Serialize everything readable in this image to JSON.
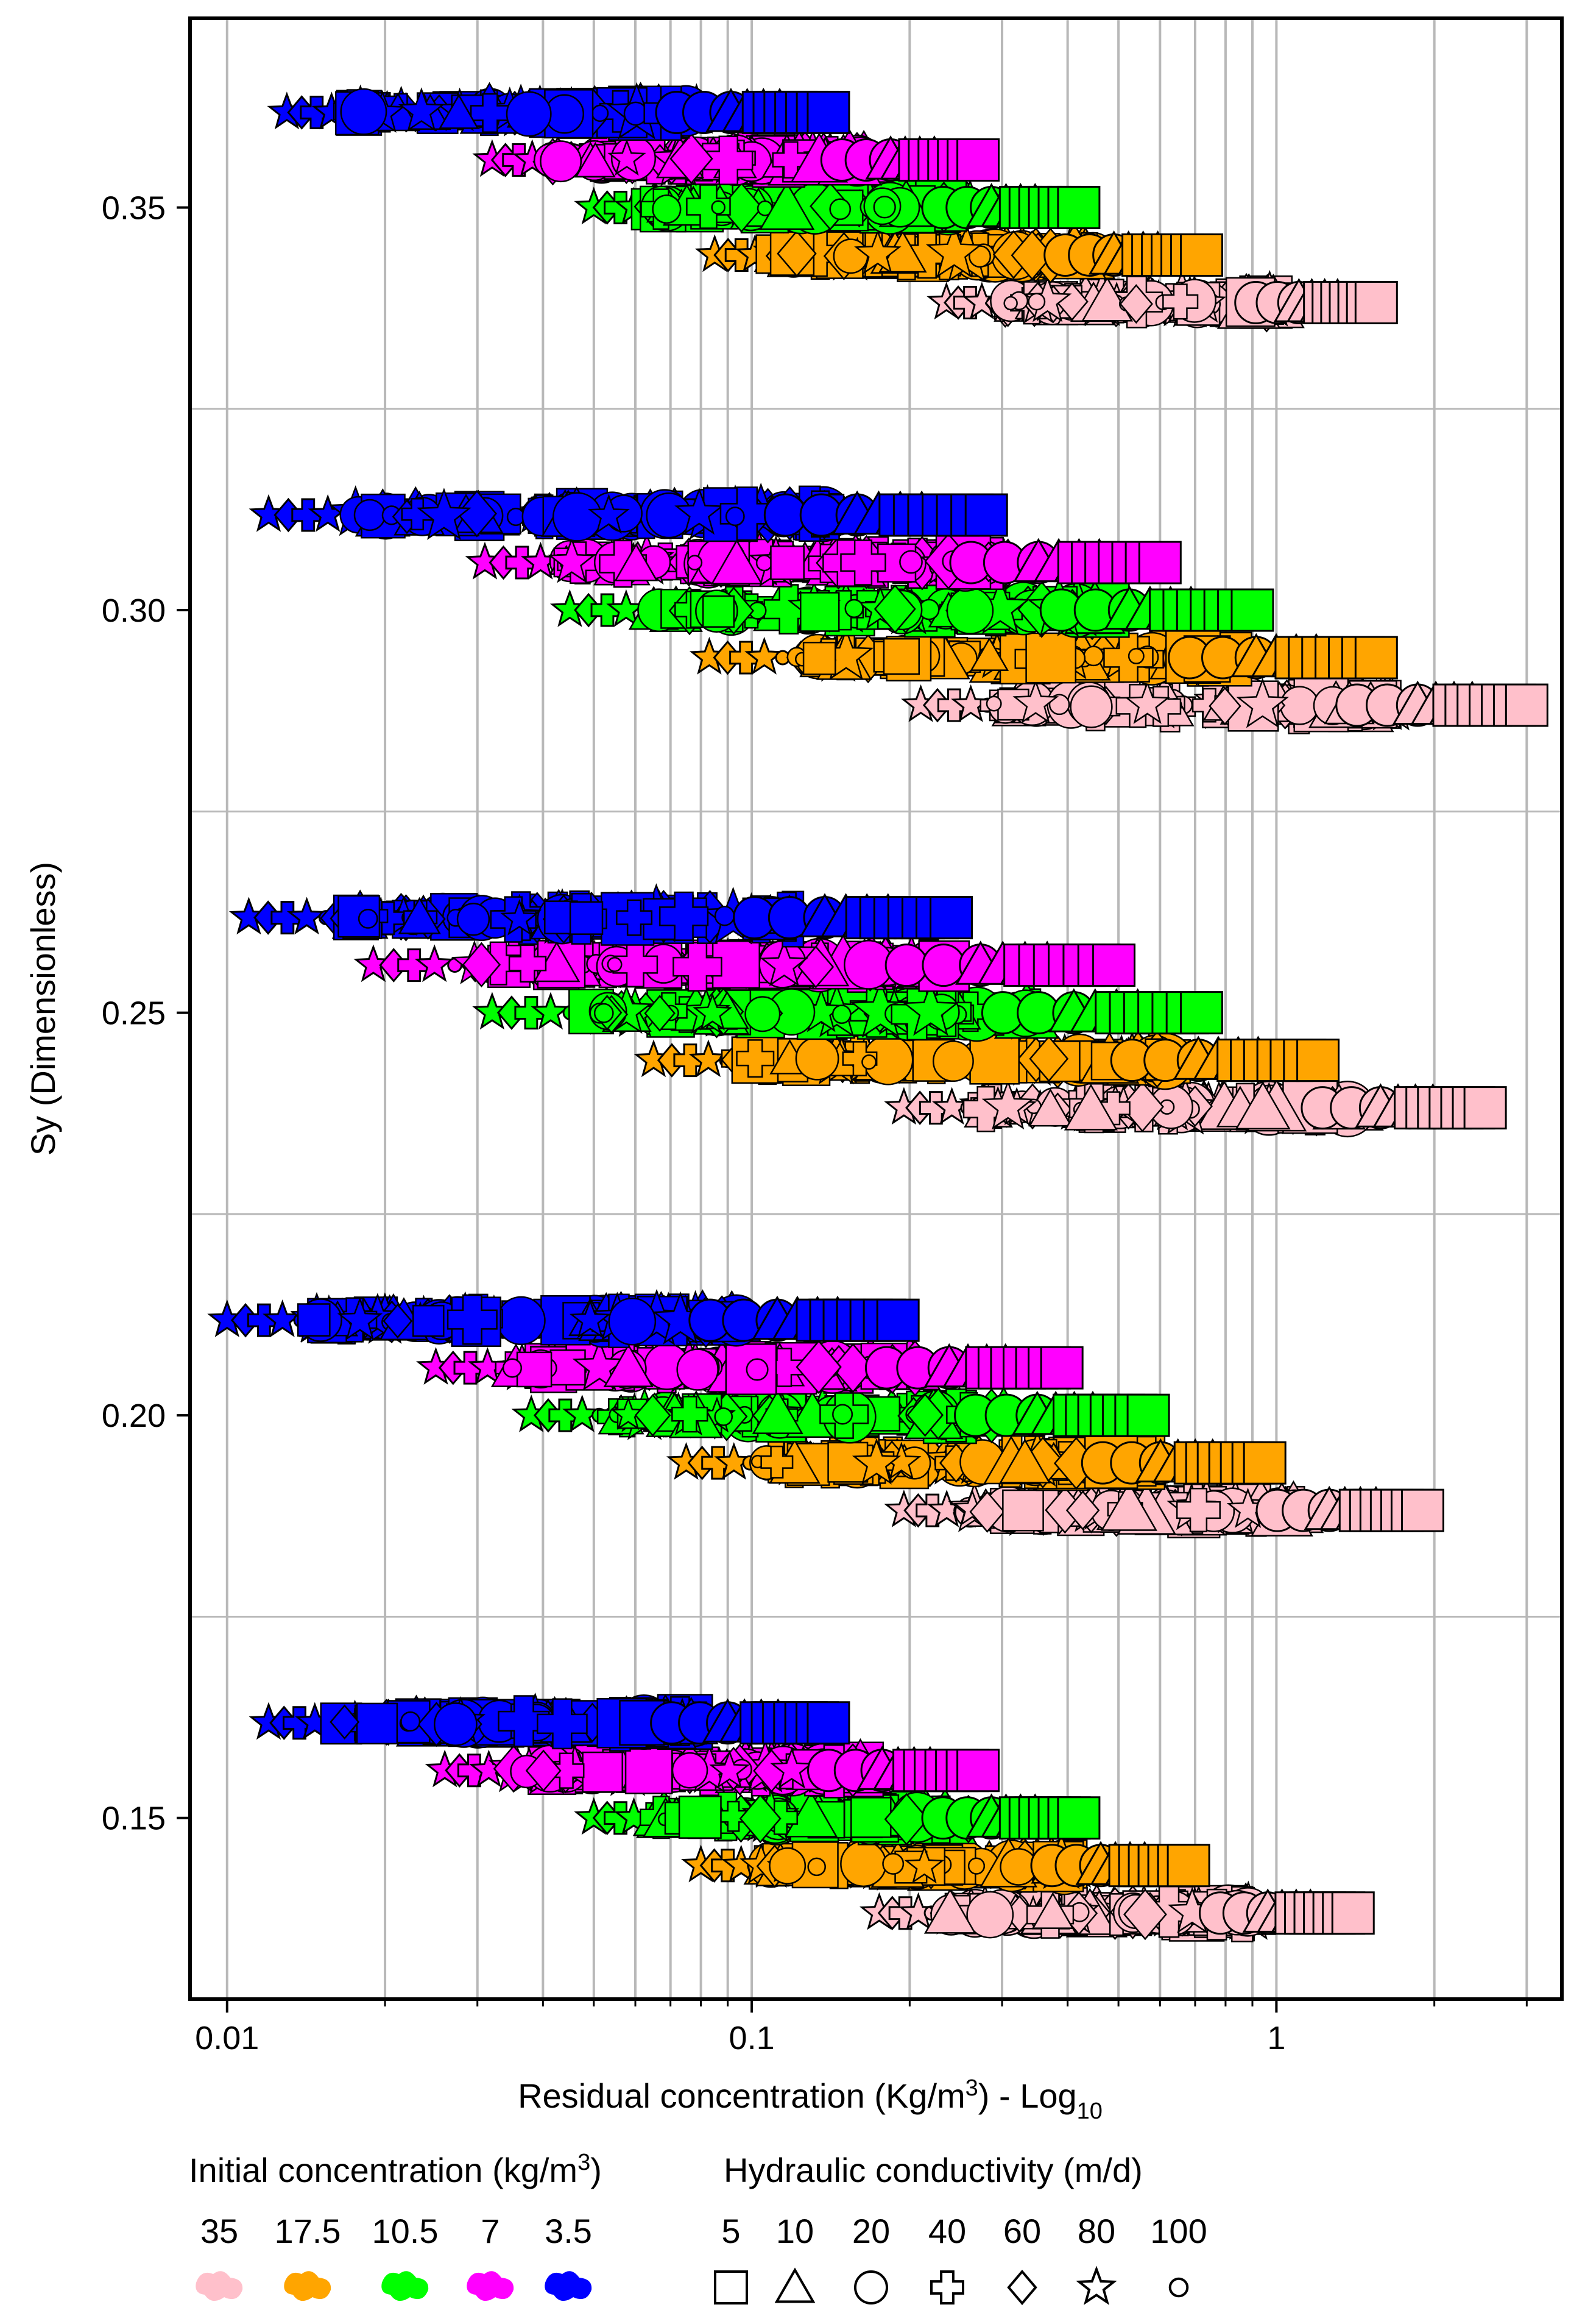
{
  "chart_data": {
    "type": "scatter",
    "xscale": "log",
    "xlim": [
      0.0085,
      3.5
    ],
    "ylim": [
      0.1275,
      0.3735
    ],
    "xticks": [
      0.01,
      0.1,
      1
    ],
    "xtick_labels": [
      "0.01",
      "0.1",
      "1"
    ],
    "yticks": [
      0.15,
      0.2,
      0.25,
      0.3,
      0.35
    ],
    "ytick_labels": [
      "0.15",
      "0.20",
      "0.25",
      "0.30",
      "0.35"
    ],
    "xlabel": "Residual concentration (Kg/m",
    "xlabel_sup": "3",
    "xlabel_mid": ") - Log",
    "xlabel_sub": "10",
    "ylabel": "Sy (Dimensionless)",
    "grid": true,
    "series": [
      {
        "name": "35",
        "color": "#FFC0CB",
        "rows": [
          {
            "sy": 0.15,
            "min": 0.175,
            "max": 1.4
          },
          {
            "sy": 0.2,
            "min": 0.195,
            "max": 1.9
          },
          {
            "sy": 0.25,
            "min": 0.195,
            "max": 2.5
          },
          {
            "sy": 0.3,
            "min": 0.21,
            "max": 3.0
          },
          {
            "sy": 0.35,
            "min": 0.235,
            "max": 1.55
          }
        ]
      },
      {
        "name": "17.5",
        "color": "#FFA500",
        "rows": [
          {
            "sy": 0.15,
            "min": 0.08,
            "max": 0.68
          },
          {
            "sy": 0.2,
            "min": 0.075,
            "max": 0.95
          },
          {
            "sy": 0.25,
            "min": 0.065,
            "max": 1.2
          },
          {
            "sy": 0.3,
            "min": 0.083,
            "max": 1.55
          },
          {
            "sy": 0.35,
            "min": 0.085,
            "max": 0.72
          }
        ]
      },
      {
        "name": "10.5",
        "color": "#00FF00",
        "rows": [
          {
            "sy": 0.15,
            "min": 0.05,
            "max": 0.42
          },
          {
            "sy": 0.2,
            "min": 0.038,
            "max": 0.57
          },
          {
            "sy": 0.25,
            "min": 0.032,
            "max": 0.72
          },
          {
            "sy": 0.3,
            "min": 0.045,
            "max": 0.9
          },
          {
            "sy": 0.35,
            "min": 0.05,
            "max": 0.42
          }
        ]
      },
      {
        "name": "7",
        "color": "#FF00FF",
        "rows": [
          {
            "sy": 0.15,
            "min": 0.026,
            "max": 0.27
          },
          {
            "sy": 0.2,
            "min": 0.025,
            "max": 0.39
          },
          {
            "sy": 0.25,
            "min": 0.019,
            "max": 0.49
          },
          {
            "sy": 0.3,
            "min": 0.031,
            "max": 0.6
          },
          {
            "sy": 0.35,
            "min": 0.032,
            "max": 0.27
          }
        ]
      },
      {
        "name": "3.5",
        "color": "#0000FF",
        "rows": [
          {
            "sy": 0.15,
            "min": 0.012,
            "max": 0.14
          },
          {
            "sy": 0.2,
            "min": 0.01,
            "max": 0.19
          },
          {
            "sy": 0.25,
            "min": 0.011,
            "max": 0.24
          },
          {
            "sy": 0.3,
            "min": 0.012,
            "max": 0.28
          },
          {
            "sy": 0.35,
            "min": 0.013,
            "max": 0.14
          }
        ]
      }
    ],
    "shapes": [
      "square",
      "triangle",
      "circle",
      "cross",
      "diamond",
      "star",
      "small-circle"
    ]
  },
  "legend": {
    "concentration_title": "Initial concentration (kg/m",
    "concentration_sup": "3",
    "concentration_close": ")",
    "concentration_items": [
      {
        "label": "35",
        "color": "#FFC0CB"
      },
      {
        "label": "17.5",
        "color": "#FFA500"
      },
      {
        "label": "10.5",
        "color": "#00FF00"
      },
      {
        "label": "7",
        "color": "#FF00FF"
      },
      {
        "label": "3.5",
        "color": "#0000FF"
      }
    ],
    "conductivity_title": "Hydraulic conductivity (m/d)",
    "conductivity_items": [
      {
        "label": "5",
        "icon": "square-icon"
      },
      {
        "label": "10",
        "icon": "triangle-icon"
      },
      {
        "label": "20",
        "icon": "circle-icon"
      },
      {
        "label": "40",
        "icon": "cross-icon"
      },
      {
        "label": "60",
        "icon": "diamond-icon"
      },
      {
        "label": "80",
        "icon": "star-icon"
      },
      {
        "label": "100",
        "icon": "small-circle-icon"
      }
    ]
  }
}
